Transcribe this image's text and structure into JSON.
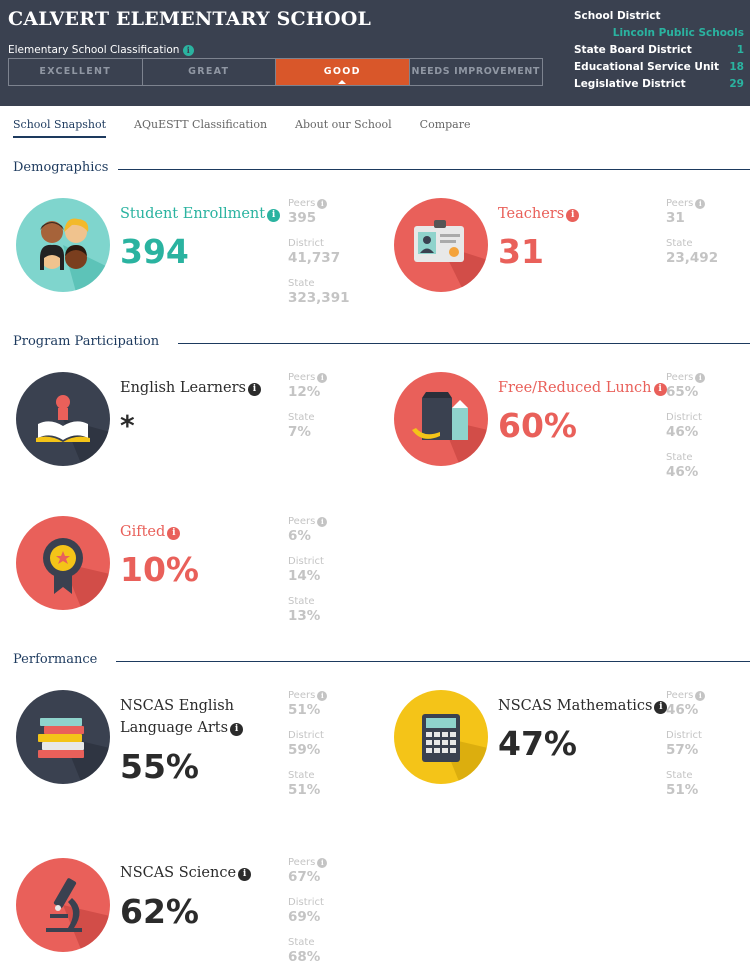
{
  "header": {
    "school_name": "CALVERT ELEMENTARY SCHOOL",
    "classification_label": "Elementary School Classification",
    "classifications": [
      "EXCELLENT",
      "GREAT",
      "GOOD",
      "NEEDS IMPROVEMENT"
    ],
    "active_classification": "GOOD",
    "district": {
      "school_district_label": "School District",
      "school_district_value": "Lincoln Public Schools",
      "state_board_label": "State Board District",
      "state_board_value": "1",
      "esu_label": "Educational Service Unit",
      "esu_value": "18",
      "legislative_label": "Legislative District",
      "legislative_value": "29"
    }
  },
  "tabs": [
    "School Snapshot",
    "AQuESTT Classification",
    "About our School",
    "Compare"
  ],
  "active_tab": "School Snapshot",
  "sections": {
    "demographics": "Demographics",
    "program": "Program Participation",
    "performance": "Performance"
  },
  "compare_labels": {
    "peers": "Peers",
    "district": "District",
    "state": "State"
  },
  "metrics": {
    "enrollment": {
      "title": "Student Enrollment",
      "value": "394",
      "peers": "395",
      "district": "41,737",
      "state": "323,391",
      "icon": "students-icon"
    },
    "teachers": {
      "title": "Teachers",
      "value": "31",
      "peers": "31",
      "state": "23,492",
      "icon": "id-badge-icon"
    },
    "english_learners": {
      "title": "English Learners",
      "value": "*",
      "peers": "12%",
      "state": "7%",
      "icon": "open-book-icon"
    },
    "lunch": {
      "title": "Free/Reduced Lunch",
      "value": "60%",
      "peers": "65%",
      "district": "46%",
      "state": "46%",
      "icon": "lunch-bag-icon"
    },
    "gifted": {
      "title": "Gifted",
      "value": "10%",
      "peers": "6%",
      "district": "14%",
      "state": "13%",
      "icon": "ribbon-award-icon"
    },
    "ela": {
      "title_line1": "NSCAS English",
      "title_line2": "Language Arts",
      "value": "55%",
      "peers": "51%",
      "district": "59%",
      "state": "51%",
      "icon": "book-stack-icon"
    },
    "math": {
      "title": "NSCAS Mathematics",
      "value": "47%",
      "peers": "46%",
      "district": "57%",
      "state": "51%",
      "icon": "calculator-icon"
    },
    "science": {
      "title": "NSCAS Science",
      "value": "62%",
      "peers": "67%",
      "district": "69%",
      "state": "68%",
      "icon": "microscope-icon"
    }
  },
  "colors": {
    "header_bg": "#3a4150",
    "teal": "#2ab3a0",
    "red": "#e9605a",
    "orange_active": "#d9572a",
    "navy": "#1d3a5e",
    "yellow": "#f4c418",
    "dark_circle": "#3a4150"
  }
}
